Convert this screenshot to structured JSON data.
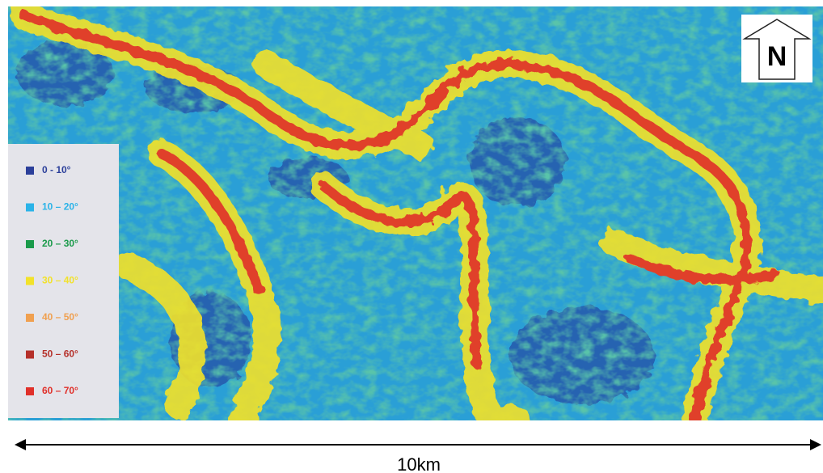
{
  "legend": {
    "items": [
      {
        "label": "0  - 10°",
        "color": "#2b3f9a"
      },
      {
        "label": "10 – 20°",
        "color": "#2bb3e8"
      },
      {
        "label": "20 – 30°",
        "color": "#1a9a4a"
      },
      {
        "label": "30 – 40°",
        "color": "#f2e22a"
      },
      {
        "label": "40 – 50°",
        "color": "#f0a050"
      },
      {
        "label": "50 – 60°",
        "color": "#b5302a"
      },
      {
        "label": "60 – 70°",
        "color": "#e0302a"
      }
    ]
  },
  "north_label": "N",
  "scale_label": "10km"
}
